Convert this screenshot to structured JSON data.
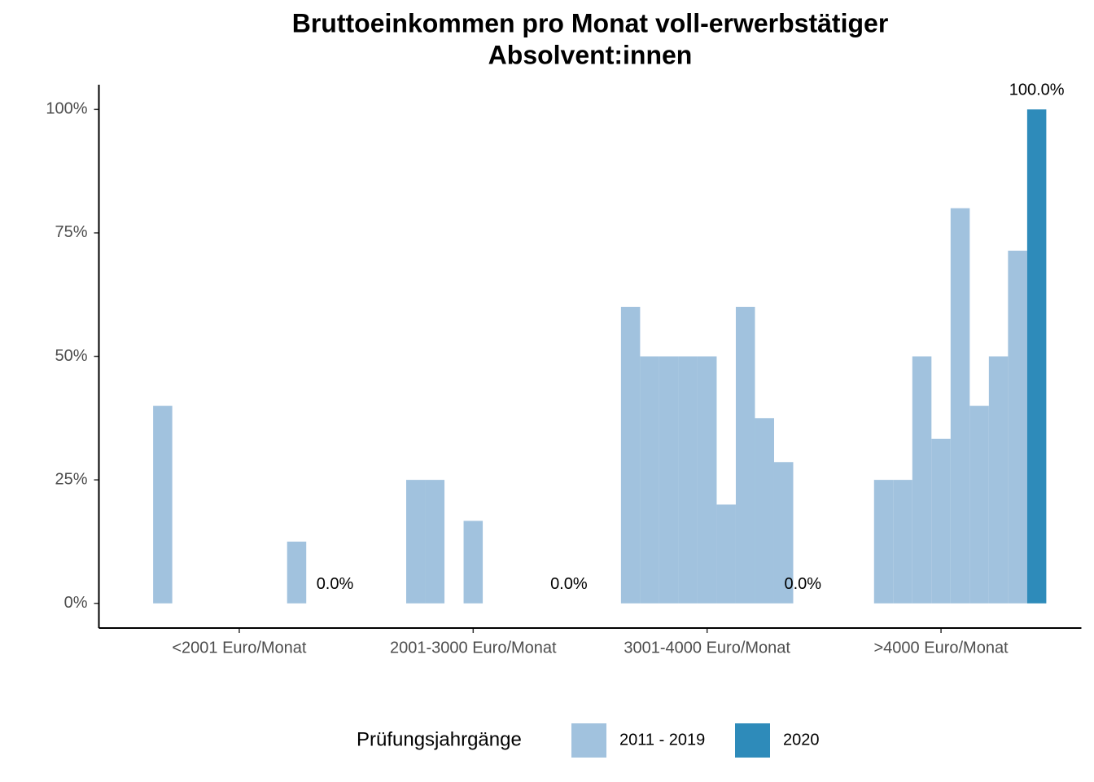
{
  "chart_data": {
    "type": "bar",
    "title": "Bruttoeinkommen pro Monat voll-erwerbstätiger",
    "subtitle": "Absolvent:innen",
    "categories": [
      "<2001 Euro/Monat",
      "2001-3000 Euro/Monat",
      "3001-4000 Euro/Monat",
      ">4000 Euro/Monat"
    ],
    "series": [
      {
        "name": "2011 - 2019",
        "color": "#a1c2de",
        "values": [
          [
            null,
            40,
            null,
            null,
            null,
            null,
            null,
            null,
            12.5,
            null
          ],
          [
            null,
            null,
            25,
            25,
            null,
            16.7,
            null,
            null,
            null,
            null
          ],
          [
            null,
            60,
            50,
            50,
            50,
            50,
            20,
            60,
            37.5,
            28.6
          ],
          [
            null,
            null,
            25,
            25,
            50,
            33.3,
            80,
            40,
            50,
            71.4
          ]
        ]
      },
      {
        "name": "2020",
        "color": "#2e8bba",
        "values": [
          0,
          0,
          0,
          100
        ],
        "value_labels": [
          "0.0%",
          "0.0%",
          "0.0%",
          "100.0%"
        ]
      }
    ],
    "ylim": [
      -5,
      105
    ],
    "yticks": [
      {
        "value": 0,
        "label": "0%"
      },
      {
        "value": 25,
        "label": "25%"
      },
      {
        "value": 50,
        "label": "50%"
      },
      {
        "value": 75,
        "label": "75%"
      },
      {
        "value": 100,
        "label": "100%"
      }
    ],
    "legend_title": "Prüfungsjahrgänge",
    "legend_position": "bottom"
  }
}
